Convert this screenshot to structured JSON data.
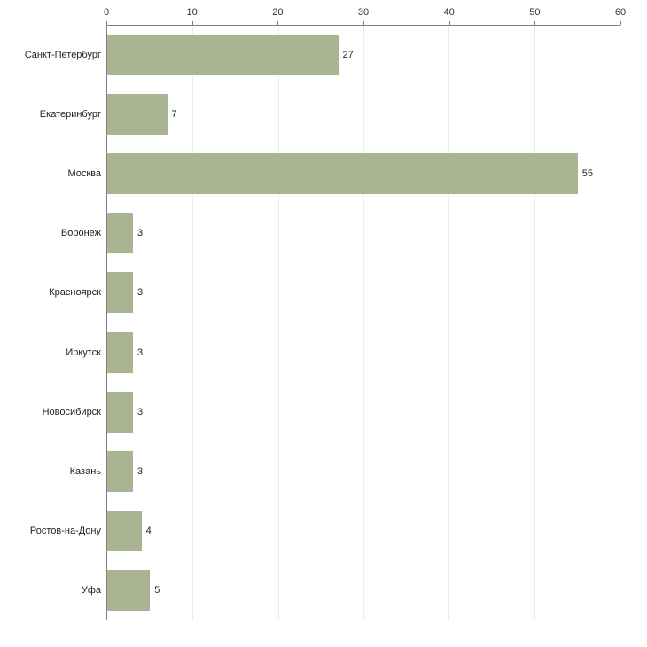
{
  "chart_data": {
    "type": "bar",
    "orientation": "horizontal",
    "title": "",
    "xlabel": "",
    "ylabel": "",
    "categories": [
      "Санкт-Петербург",
      "Екатеринбург",
      "Москва",
      "Воронеж",
      "Красноярск",
      "Иркутск",
      "Новосибирск",
      "Казань",
      "Ростов-на-Дону",
      "Уфа"
    ],
    "values": [
      27,
      7,
      55,
      3,
      3,
      3,
      3,
      3,
      4,
      5
    ],
    "xlim": [
      0,
      60
    ],
    "x_ticks": [
      0,
      10,
      20,
      30,
      40,
      50,
      60
    ],
    "grid": true,
    "legend": "none",
    "axis_position": "top",
    "bar_color": "#a9b592",
    "grid_color": "#ececec",
    "axis_color": "#808080",
    "label_color": "#222222"
  }
}
